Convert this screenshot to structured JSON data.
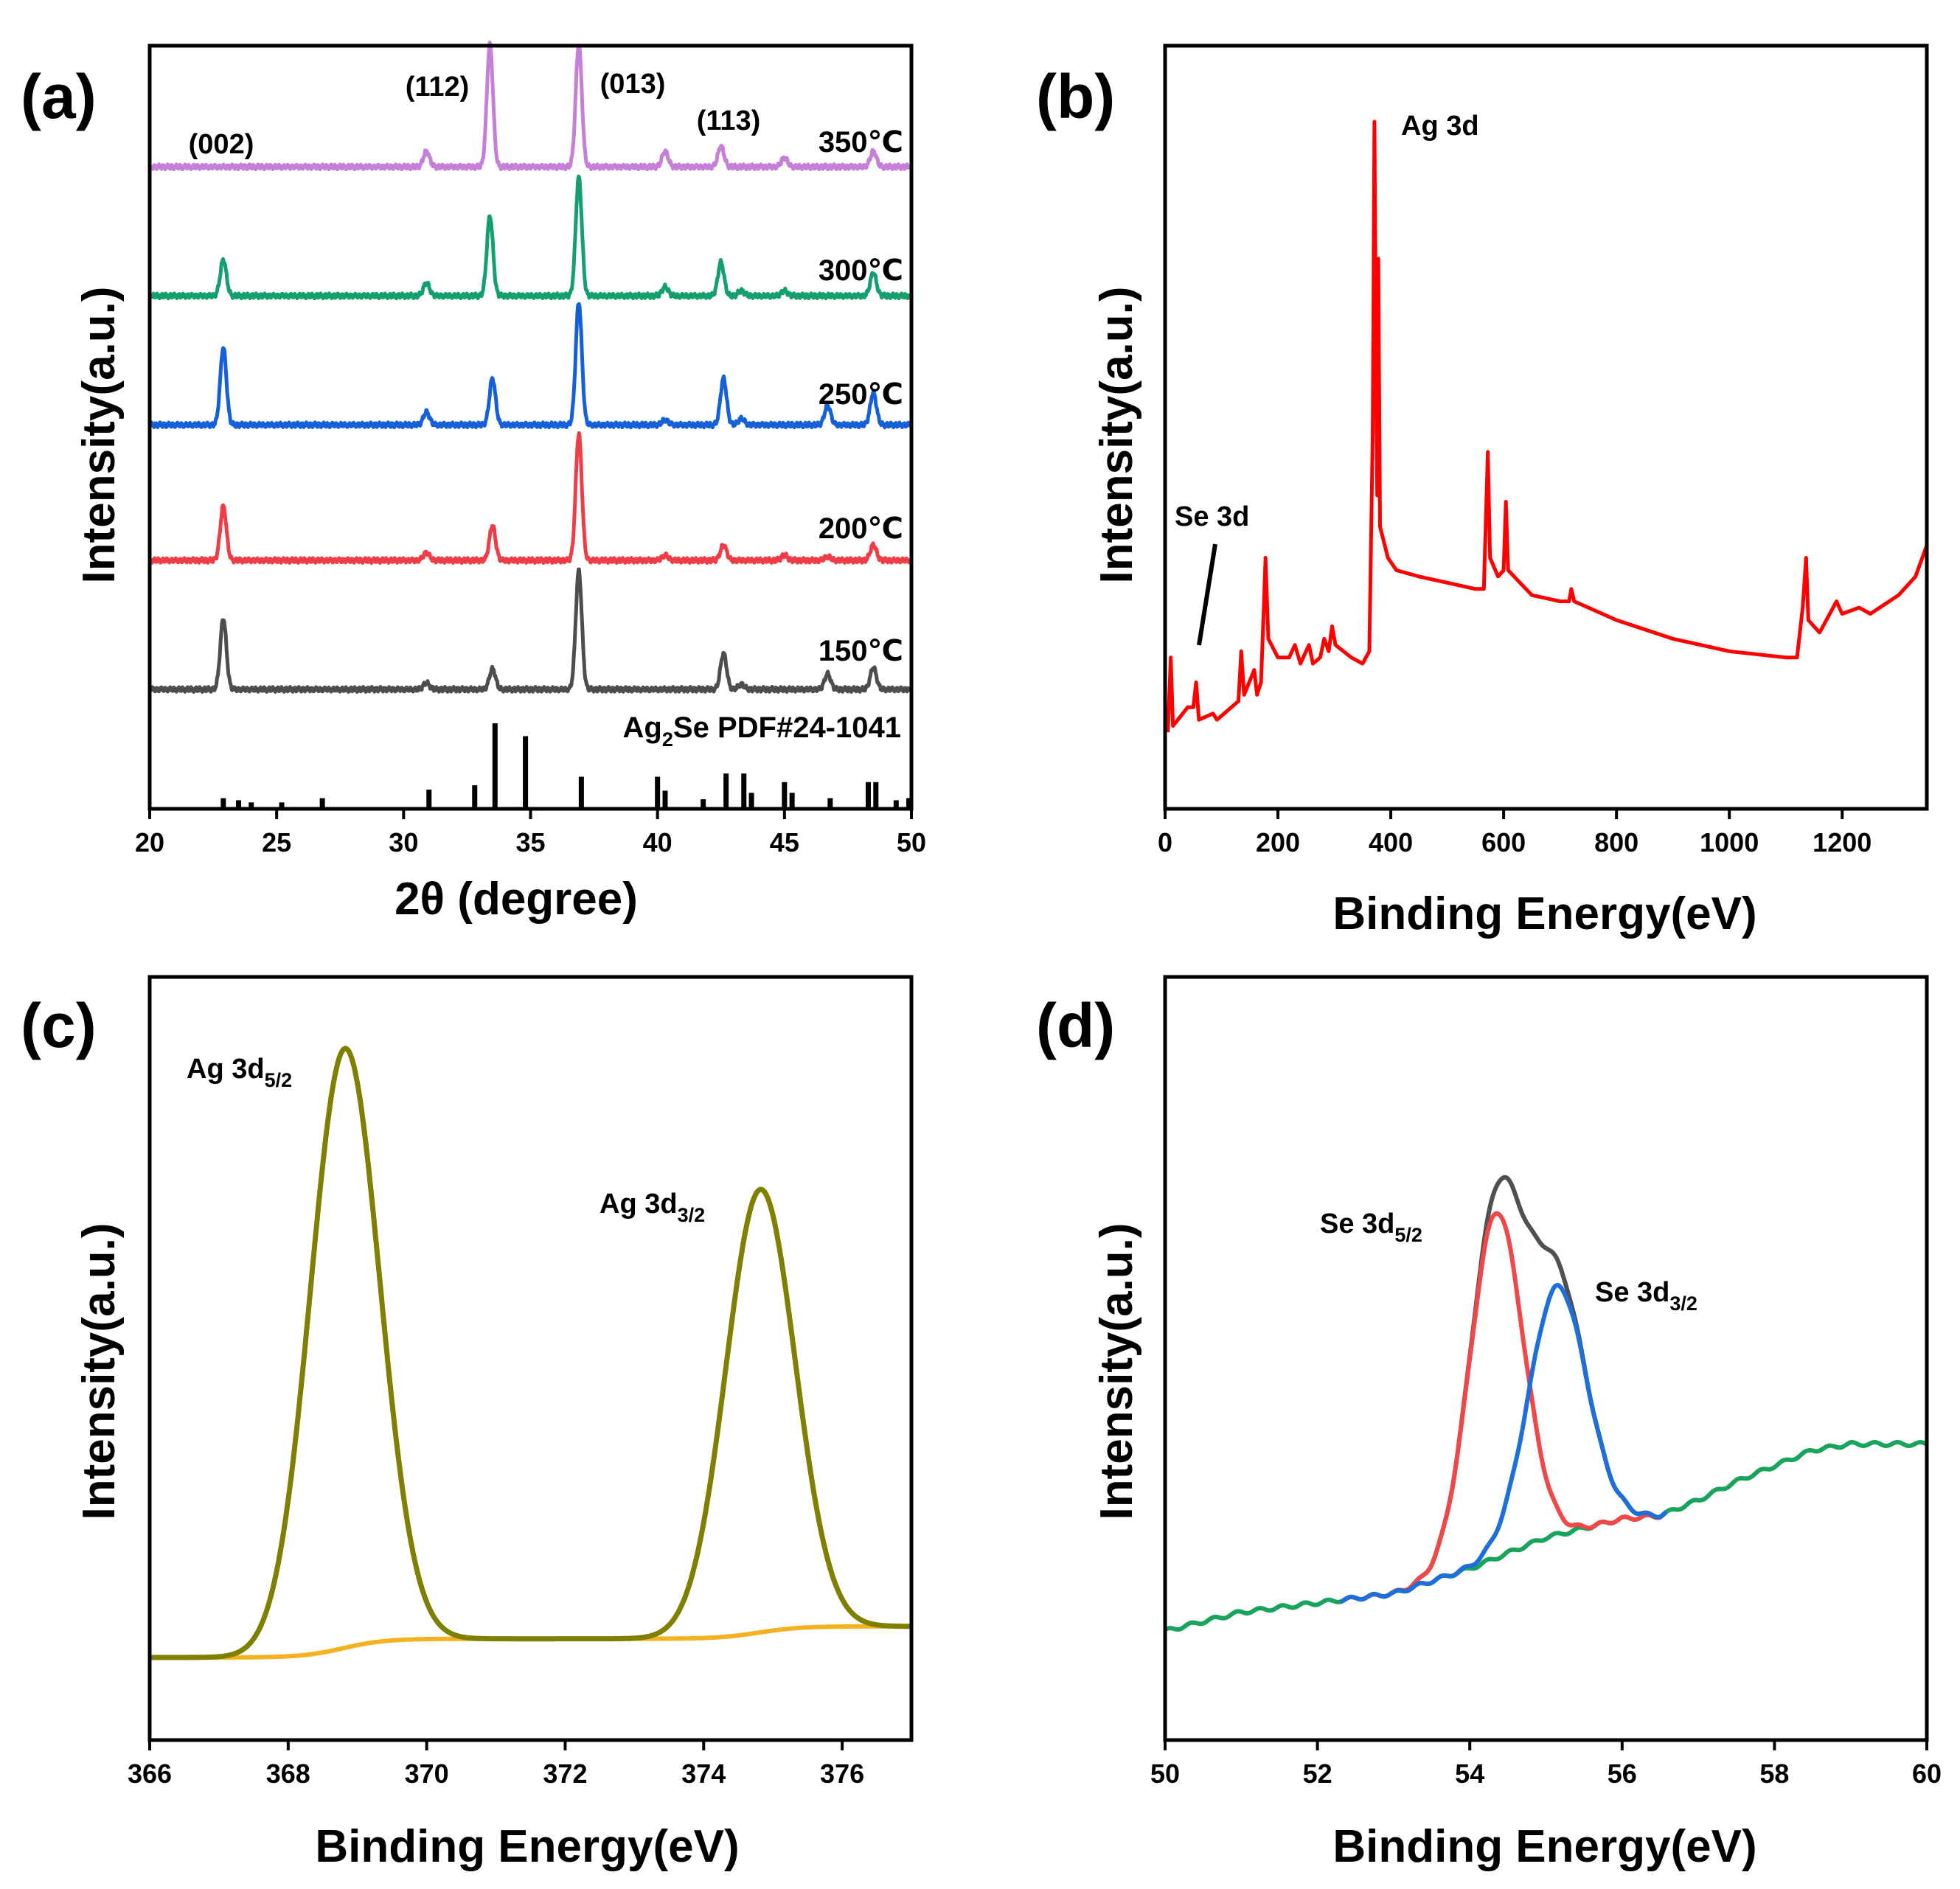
{
  "chart_data": [
    {
      "panel": "(a)",
      "type": "line",
      "xlabel": "2θ (degree)",
      "ylabel": "Intensity(a.u.)",
      "xlim": [
        20,
        50
      ],
      "xticks": [
        20,
        25,
        30,
        35,
        40,
        45,
        50
      ],
      "series": [
        {
          "name": "350℃",
          "color": "#c57fd9",
          "baseline": 4.05,
          "peaks": [
            [
              30.9,
              0.12
            ],
            [
              33.4,
              0.95
            ],
            [
              36.9,
              0.95
            ],
            [
              40.3,
              0.12
            ],
            [
              42.5,
              0.16
            ],
            [
              45.0,
              0.07
            ],
            [
              48.5,
              0.12
            ]
          ]
        },
        {
          "name": "300℃",
          "color": "#14a06c",
          "baseline": 3.05,
          "peaks": [
            [
              22.9,
              0.28
            ],
            [
              30.9,
              0.1
            ],
            [
              33.4,
              0.62
            ],
            [
              36.9,
              0.92
            ],
            [
              40.3,
              0.07
            ],
            [
              42.5,
              0.26
            ],
            [
              43.3,
              0.04
            ],
            [
              45.0,
              0.04
            ],
            [
              48.5,
              0.18
            ]
          ]
        },
        {
          "name": "250℃",
          "color": "#1560d8",
          "baseline": 2.05,
          "peaks": [
            [
              22.9,
              0.6
            ],
            [
              30.9,
              0.1
            ],
            [
              33.5,
              0.36
            ],
            [
              36.9,
              0.95
            ],
            [
              40.3,
              0.04
            ],
            [
              42.6,
              0.36
            ],
            [
              43.3,
              0.05
            ],
            [
              46.7,
              0.15
            ],
            [
              48.5,
              0.25
            ]
          ]
        },
        {
          "name": "200℃",
          "color": "#ef3d47",
          "baseline": 1.0,
          "peaks": [
            [
              22.9,
              0.42
            ],
            [
              30.9,
              0.06
            ],
            [
              33.5,
              0.27
            ],
            [
              36.9,
              0.98
            ],
            [
              40.3,
              0.04
            ],
            [
              42.6,
              0.12
            ],
            [
              45.0,
              0.04
            ],
            [
              46.7,
              0.03
            ],
            [
              48.5,
              0.12
            ]
          ]
        },
        {
          "name": "150℃",
          "color": "#4d4d4d",
          "baseline": 0.0,
          "peaks": [
            [
              22.9,
              0.55
            ],
            [
              30.9,
              0.05
            ],
            [
              33.5,
              0.16
            ],
            [
              36.9,
              0.92
            ],
            [
              42.6,
              0.28
            ],
            [
              43.3,
              0.04
            ],
            [
              46.7,
              0.12
            ],
            [
              48.5,
              0.17
            ]
          ]
        }
      ],
      "reference": {
        "name_prefix": "Ag",
        "name_sub": "2",
        "name_suffix": "Se PDF#24-1041",
        "sticks": [
          [
            22.9,
            0.1
          ],
          [
            23.5,
            0.08
          ],
          [
            24.0,
            0.06
          ],
          [
            25.2,
            0.06
          ],
          [
            26.8,
            0.1
          ],
          [
            31.0,
            0.18
          ],
          [
            32.8,
            0.22
          ],
          [
            33.6,
            0.8
          ],
          [
            34.8,
            0.68
          ],
          [
            37.0,
            0.3
          ],
          [
            40.0,
            0.3
          ],
          [
            40.3,
            0.17
          ],
          [
            41.8,
            0.09
          ],
          [
            42.7,
            0.33
          ],
          [
            43.4,
            0.33
          ],
          [
            43.7,
            0.15
          ],
          [
            45.0,
            0.25
          ],
          [
            45.3,
            0.15
          ],
          [
            46.8,
            0.1
          ],
          [
            48.3,
            0.25
          ],
          [
            48.6,
            0.25
          ],
          [
            49.4,
            0.08
          ],
          [
            49.9,
            0.1
          ]
        ]
      },
      "annotations": [
        "(002)",
        "(112)",
        "(013)",
        "(113)"
      ]
    },
    {
      "panel": "(b)",
      "type": "line",
      "xlabel": "Binding Energy(eV)",
      "ylabel": "Intensity(a.u.)",
      "xlim": [
        0,
        1350
      ],
      "xticks": [
        0,
        200,
        400,
        600,
        800,
        1000,
        1200
      ],
      "annotations": [
        "Ag 3d",
        "Se 3d"
      ],
      "series": [
        {
          "name": "Survey",
          "color": "#ff0000",
          "points": [
            [
              5,
              0.02
            ],
            [
              10,
              0.14
            ],
            [
              14,
              0.03
            ],
            [
              40,
              0.06
            ],
            [
              50,
              0.06
            ],
            [
              55,
              0.1
            ],
            [
              60,
              0.04
            ],
            [
              85,
              0.05
            ],
            [
              92,
              0.04
            ],
            [
              130,
              0.07
            ],
            [
              135,
              0.15
            ],
            [
              140,
              0.08
            ],
            [
              158,
              0.12
            ],
            [
              163,
              0.08
            ],
            [
              170,
              0.1
            ],
            [
              175,
              0.22
            ],
            [
              178,
              0.3
            ],
            [
              183,
              0.17
            ],
            [
              200,
              0.14
            ],
            [
              220,
              0.14
            ],
            [
              230,
              0.16
            ],
            [
              240,
              0.13
            ],
            [
              255,
              0.16
            ],
            [
              262,
              0.13
            ],
            [
              275,
              0.14
            ],
            [
              282,
              0.17
            ],
            [
              290,
              0.15
            ],
            [
              296,
              0.19
            ],
            [
              302,
              0.16
            ],
            [
              330,
              0.14
            ],
            [
              350,
              0.13
            ],
            [
              362,
              0.15
            ],
            [
              368,
              0.5
            ],
            [
              371,
              1.0
            ],
            [
              374,
              0.6
            ],
            [
              376,
              0.4
            ],
            [
              378,
              0.78
            ],
            [
              381,
              0.35
            ],
            [
              395,
              0.3
            ],
            [
              410,
              0.28
            ],
            [
              450,
              0.27
            ],
            [
              500,
              0.26
            ],
            [
              550,
              0.25
            ],
            [
              565,
              0.25
            ],
            [
              572,
              0.47
            ],
            [
              576,
              0.3
            ],
            [
              590,
              0.27
            ],
            [
              600,
              0.28
            ],
            [
              604,
              0.39
            ],
            [
              608,
              0.28
            ],
            [
              650,
              0.24
            ],
            [
              700,
              0.23
            ],
            [
              716,
              0.23
            ],
            [
              720,
              0.25
            ],
            [
              725,
              0.23
            ],
            [
              800,
              0.2
            ],
            [
              900,
              0.17
            ],
            [
              1000,
              0.15
            ],
            [
              1100,
              0.14
            ],
            [
              1120,
              0.14
            ],
            [
              1130,
              0.22
            ],
            [
              1136,
              0.3
            ],
            [
              1140,
              0.2
            ],
            [
              1160,
              0.18
            ],
            [
              1190,
              0.23
            ],
            [
              1200,
              0.21
            ],
            [
              1230,
              0.22
            ],
            [
              1250,
              0.21
            ],
            [
              1300,
              0.24
            ],
            [
              1330,
              0.27
            ],
            [
              1350,
              0.32
            ]
          ]
        }
      ]
    },
    {
      "panel": "(c)",
      "type": "line",
      "xlabel": "Binding Energy(eV)",
      "ylabel": "Intensity(a.u.)",
      "xlim": [
        366,
        377
      ],
      "xticks": [
        366,
        368,
        370,
        372,
        374,
        376
      ],
      "annotations": [
        {
          "prefix": "Ag 3d",
          "sub": "5/2"
        },
        {
          "prefix": "Ag 3d",
          "sub": "3/2"
        }
      ],
      "series": [
        {
          "name": "Ag 3d envelope",
          "color": "#808000",
          "peaks": [
            [
              368.82,
              0.962
            ],
            [
              374.82,
              0.711
            ]
          ]
        },
        {
          "name": "background",
          "color": "#f4b120",
          "steps": [
            [
              368.8,
              0.03
            ],
            [
              374.8,
              0.02
            ]
          ]
        }
      ]
    },
    {
      "panel": "(d)",
      "type": "line",
      "xlabel": "Binding Energy(eV)",
      "ylabel": "Intensity(a.u.)",
      "xlim": [
        50,
        60
      ],
      "xticks": [
        50,
        52,
        54,
        56,
        58,
        60
      ],
      "annotations": [
        {
          "prefix": "Se 3d",
          "sub": "5/2"
        },
        {
          "prefix": "Se 3d",
          "sub": "3/2"
        }
      ],
      "series": [
        {
          "name": "envelope",
          "color": "#505050"
        },
        {
          "name": "Se 3d5/2",
          "color": "#f04848",
          "peak": [
            54.35,
            0.555
          ]
        },
        {
          "name": "Se 3d3/2",
          "color": "#1e6fd9",
          "peak": [
            55.15,
            0.398
          ]
        },
        {
          "name": "background",
          "color": "#18a45c",
          "points": [
            [
              50,
              0.0
            ],
            [
              51,
              0.03
            ],
            [
              52,
              0.045
            ],
            [
              53,
              0.06
            ],
            [
              53.5,
              0.08
            ],
            [
              54,
              0.1
            ],
            [
              55,
              0.15
            ],
            [
              56,
              0.18
            ],
            [
              56.5,
              0.185
            ],
            [
              57,
              0.21
            ],
            [
              57.5,
              0.24
            ],
            [
              58,
              0.265
            ],
            [
              58.5,
              0.29
            ],
            [
              59,
              0.3
            ],
            [
              59.5,
              0.3
            ],
            [
              60,
              0.3
            ]
          ]
        }
      ]
    }
  ]
}
